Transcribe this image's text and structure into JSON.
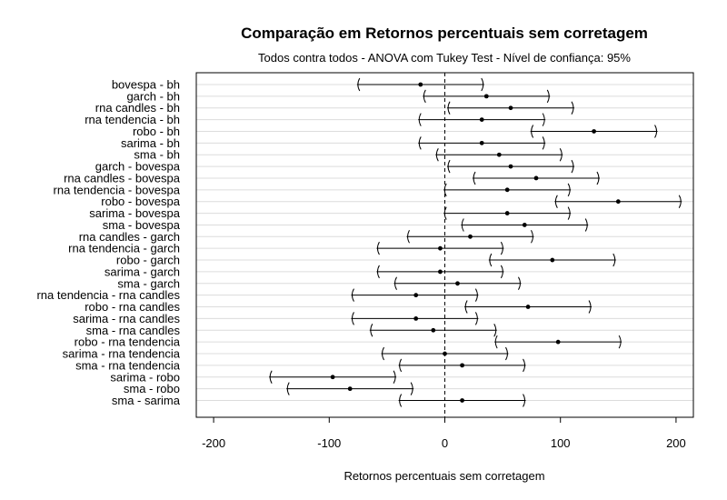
{
  "chart_data": {
    "type": "interval",
    "title": "Comparação em Retornos percentuais sem corretagem",
    "subtitle": "Todos contra todos - ANOVA com Tukey Test - Nível de confiança: 95%",
    "xlabel": "Retornos percentuais sem corretagem",
    "ylabel": "",
    "xlim": [
      -215,
      215
    ],
    "xticks": [
      -200,
      -100,
      0,
      100,
      200
    ],
    "reference_line": 0,
    "grid": "horizontal",
    "comparisons": [
      {
        "label": "bovespa - bh",
        "lower": -76,
        "estimate": -21,
        "upper": 34
      },
      {
        "label": "garch - bh",
        "lower": -19,
        "estimate": 36,
        "upper": 91
      },
      {
        "label": "rna candles - bh",
        "lower": 2,
        "estimate": 57,
        "upper": 112
      },
      {
        "label": "rna tendencia - bh",
        "lower": -23,
        "estimate": 32,
        "upper": 87
      },
      {
        "label": "robo - bh",
        "lower": 74,
        "estimate": 129,
        "upper": 184
      },
      {
        "label": "sarima - bh",
        "lower": -23,
        "estimate": 32,
        "upper": 87
      },
      {
        "label": "sma - bh",
        "lower": -8,
        "estimate": 47,
        "upper": 102
      },
      {
        "label": "garch - bovespa",
        "lower": 2,
        "estimate": 57,
        "upper": 112
      },
      {
        "label": "rna candles - bovespa",
        "lower": 24,
        "estimate": 79,
        "upper": 134
      },
      {
        "label": "rna tendencia - bovespa",
        "lower": -1,
        "estimate": 54,
        "upper": 109
      },
      {
        "label": "robo - bovespa",
        "lower": 95,
        "estimate": 150,
        "upper": 205
      },
      {
        "label": "sarima - bovespa",
        "lower": -1,
        "estimate": 54,
        "upper": 109
      },
      {
        "label": "sma - bovespa",
        "lower": 14,
        "estimate": 69,
        "upper": 124
      },
      {
        "label": "rna candles - garch",
        "lower": -33,
        "estimate": 22,
        "upper": 77
      },
      {
        "label": "rna tendencia - garch",
        "lower": -59,
        "estimate": -4,
        "upper": 51
      },
      {
        "label": "robo - garch",
        "lower": 38,
        "estimate": 93,
        "upper": 148
      },
      {
        "label": "sarima - garch",
        "lower": -59,
        "estimate": -4,
        "upper": 51
      },
      {
        "label": "sma - garch",
        "lower": -44,
        "estimate": 11,
        "upper": 66
      },
      {
        "label": "rna tendencia - rna candles",
        "lower": -81,
        "estimate": -25,
        "upper": 29
      },
      {
        "label": "robo - rna candles",
        "lower": 17,
        "estimate": 72,
        "upper": 127
      },
      {
        "label": "sarima - rna candles",
        "lower": -81,
        "estimate": -25,
        "upper": 29
      },
      {
        "label": "sma - rna candles",
        "lower": -65,
        "estimate": -10,
        "upper": 45
      },
      {
        "label": "robo - rna tendencia",
        "lower": 43,
        "estimate": 98,
        "upper": 153
      },
      {
        "label": "sarima - rna tendencia",
        "lower": -55,
        "estimate": 0,
        "upper": 55
      },
      {
        "label": "sma - rna tendencia",
        "lower": -40,
        "estimate": 15,
        "upper": 70
      },
      {
        "label": "sarima - robo",
        "lower": -152,
        "estimate": -97,
        "upper": -42
      },
      {
        "label": "sma - robo",
        "lower": -137,
        "estimate": -82,
        "upper": -27
      },
      {
        "label": "sma - sarima",
        "lower": -40,
        "estimate": 15,
        "upper": 70
      }
    ]
  },
  "colors": {
    "background": "#ffffff",
    "gridline": "#dcdcdc",
    "frame": "#000000",
    "interval": "#000000",
    "point": "#000000",
    "reference_line": "#000000"
  }
}
